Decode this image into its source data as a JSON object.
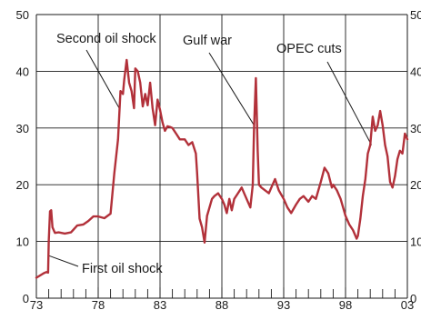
{
  "chart_data": {
    "type": "line",
    "title": "",
    "xlabel": "",
    "ylabel": "",
    "xlim": [
      1973,
      2003
    ],
    "ylim": [
      0,
      50
    ],
    "grid": true,
    "colors": {
      "series": "#b2313a",
      "grid": "#1a1a1a",
      "text": "#1a1a1a",
      "background": "#ffffff"
    },
    "x_tick_labels": [
      "73",
      "78",
      "83",
      "88",
      "93",
      "98",
      "03"
    ],
    "x_tick_values": [
      1973,
      1978,
      1983,
      1988,
      1993,
      1998,
      2003
    ],
    "y_tick_labels_left": [
      "0",
      "10",
      "20",
      "30",
      "40",
      "50"
    ],
    "y_tick_labels_right": [
      "0",
      "10",
      "20",
      "30",
      "40",
      "50"
    ],
    "y_tick_values": [
      0,
      10,
      20,
      30,
      40,
      50
    ],
    "annotations": [
      {
        "label": "Second oil shock",
        "x": 1979.7,
        "y": 33.5
      },
      {
        "label": "Gulf war",
        "x": 1990.6,
        "y": 30.5
      },
      {
        "label": "OPEC cuts",
        "x": 2000.1,
        "y": 27.0
      },
      {
        "label": "First oil shock",
        "x": 1974.0,
        "y": 7.5
      }
    ],
    "series": [
      {
        "x": [
          1973.0,
          1973.3,
          1973.6,
          1973.8,
          1973.95,
          1974.0,
          1974.1,
          1974.2,
          1974.3,
          1974.5,
          1974.8,
          1975.3,
          1975.8,
          1976.3,
          1976.8,
          1977.2,
          1977.6,
          1978.0,
          1978.5,
          1979.0,
          1979.3,
          1979.6,
          1979.8,
          1980.0,
          1980.1,
          1980.3,
          1980.5,
          1980.7,
          1980.9,
          1981.0,
          1981.2,
          1981.4,
          1981.6,
          1981.8,
          1982.0,
          1982.2,
          1982.4,
          1982.6,
          1982.8,
          1983.0,
          1983.2,
          1983.4,
          1983.6,
          1983.8,
          1984.0,
          1984.3,
          1984.6,
          1985.0,
          1985.3,
          1985.6,
          1985.9,
          1986.0,
          1986.2,
          1986.4,
          1986.6,
          1986.8,
          1987.0,
          1987.2,
          1987.4,
          1987.7,
          1988.0,
          1988.2,
          1988.4,
          1988.6,
          1988.8,
          1989.0,
          1989.3,
          1989.6,
          1990.0,
          1990.3,
          1990.5,
          1990.6,
          1990.75,
          1990.9,
          1991.0,
          1991.2,
          1991.5,
          1991.8,
          1992.0,
          1992.3,
          1992.6,
          1993.0,
          1993.3,
          1993.6,
          1994.0,
          1994.3,
          1994.6,
          1995.0,
          1995.3,
          1995.6,
          1996.0,
          1996.3,
          1996.6,
          1996.9,
          1997.0,
          1997.3,
          1997.6,
          1998.0,
          1998.3,
          1998.6,
          1998.9,
          1999.0,
          1999.2,
          1999.4,
          1999.6,
          1999.8,
          2000.0,
          2000.2,
          2000.4,
          2000.6,
          2000.8,
          2001.0,
          2001.2,
          2001.4,
          2001.6,
          2001.8,
          2002.0,
          2002.2,
          2002.4,
          2002.6,
          2002.8,
          2003.0
        ],
        "values": [
          3.6,
          4.0,
          4.4,
          4.6,
          4.5,
          10.0,
          15.3,
          15.5,
          12.5,
          11.5,
          11.6,
          11.4,
          11.6,
          12.8,
          13.0,
          13.6,
          14.4,
          14.4,
          14.1,
          14.9,
          22.0,
          28.0,
          36.5,
          36.0,
          38.5,
          42.0,
          38.0,
          36.5,
          33.5,
          40.5,
          40.0,
          38.0,
          33.8,
          36.0,
          34.0,
          38.0,
          33.5,
          30.5,
          35.0,
          33.2,
          31.0,
          29.5,
          30.3,
          30.2,
          30.0,
          29.0,
          28.0,
          28.0,
          27.0,
          27.5,
          25.5,
          22.0,
          14.0,
          12.5,
          9.8,
          14.5,
          16.0,
          17.5,
          18.0,
          18.5,
          17.5,
          16.5,
          15.0,
          17.5,
          15.5,
          17.5,
          18.5,
          19.5,
          17.5,
          16.0,
          20.0,
          30.0,
          38.8,
          26.0,
          20.0,
          19.5,
          19.0,
          18.5,
          19.5,
          21.0,
          19.0,
          17.5,
          16.0,
          15.0,
          16.5,
          17.5,
          18.0,
          17.0,
          18.0,
          17.5,
          20.5,
          23.0,
          22.0,
          19.5,
          20.0,
          19.0,
          17.5,
          14.5,
          13.0,
          12.0,
          10.5,
          11.0,
          14.0,
          18.0,
          21.0,
          25.5,
          27.0,
          32.0,
          29.5,
          30.5,
          33.0,
          30.5,
          27.0,
          25.0,
          20.5,
          19.5,
          21.5,
          24.5,
          26.0,
          25.5,
          29.0,
          28.0
        ]
      }
    ]
  }
}
